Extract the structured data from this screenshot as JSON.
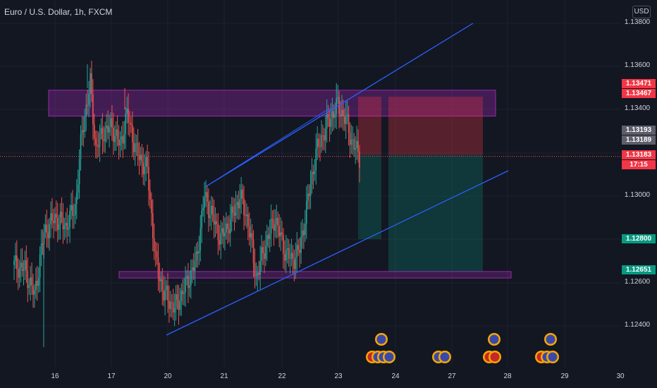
{
  "header": {
    "symbol_title": "Euro / U.S. Dollar, 1h, FXCM",
    "currency_label": "USD"
  },
  "price_axis": {
    "ticks": [
      "1.13800",
      "1.13600",
      "1.13400",
      "1.13000",
      "1.12600",
      "1.12400"
    ]
  },
  "price_tags": {
    "tag1": "1.13471",
    "tag2": "1.13467",
    "tag3": "1.13193",
    "tag4": "1.13189",
    "tag5": "1.13183",
    "countdown": "17:15",
    "tag6": "1.12800",
    "tag7": "1.12651"
  },
  "time_axis": {
    "ticks": [
      "16",
      "17",
      "20",
      "21",
      "22",
      "23",
      "24",
      "27",
      "28",
      "29",
      "30"
    ]
  },
  "colors": {
    "background": "#131722",
    "up": "#26a69a",
    "down": "#ef5350",
    "trendline": "#2962ff",
    "zone": "#9c27b0",
    "stop": "#f23645",
    "target": "#089981"
  },
  "chart_data": {
    "type": "candlestick",
    "symbol": "EUR/USD",
    "interval": "1h",
    "ylim": [
      1.1225,
      1.1385
    ],
    "x": [
      "16",
      "17",
      "20",
      "21",
      "22",
      "23",
      "24",
      "27",
      "28",
      "29",
      "30"
    ],
    "zones": [
      {
        "from": 1.1337,
        "to": 1.1349
      },
      {
        "from": 1.1262,
        "to": 1.1265
      }
    ],
    "positions": [
      {
        "entry": 1.1319,
        "stop": 1.1346,
        "target": 1.128
      },
      {
        "entry": 1.1319,
        "stop": 1.1346,
        "target": 1.1265
      }
    ],
    "last_price": 1.13183
  }
}
